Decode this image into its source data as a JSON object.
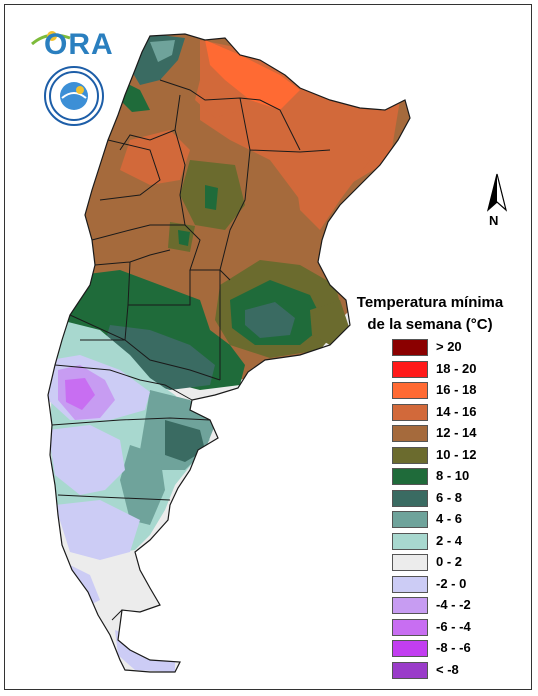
{
  "logo": {
    "text": "ORA"
  },
  "north_arrow": {
    "label": "N"
  },
  "legend": {
    "title_line1": "Temperatura mínima",
    "title_line2": "de la semana (°C)",
    "items": [
      {
        "label": "> 20",
        "color": "#8b0000"
      },
      {
        "label": "18 - 20",
        "color": "#ff1a1a"
      },
      {
        "label": "16 - 18",
        "color": "#ff6a33"
      },
      {
        "label": "14 - 16",
        "color": "#d2693a"
      },
      {
        "label": "12 - 14",
        "color": "#a56a3c"
      },
      {
        "label": "10 - 12",
        "color": "#6b6b2e"
      },
      {
        "label": "8 - 10",
        "color": "#1f6b3a"
      },
      {
        "label": "6 - 8",
        "color": "#3a6b62"
      },
      {
        "label": "4 - 6",
        "color": "#6fa39b"
      },
      {
        "label": "2 - 4",
        "color": "#a8d8cf"
      },
      {
        "label": "0 - 2",
        "color": "#ececec"
      },
      {
        "label": "-2 - 0",
        "color": "#ccccf5"
      },
      {
        "label": "-4 - -2",
        "color": "#c79cf2"
      },
      {
        "label": "-6 - -4",
        "color": "#c86ef2"
      },
      {
        "label": "-8 - -6",
        "color": "#c23ef0"
      },
      {
        "label": "< -8",
        "color": "#9a3cc9"
      }
    ]
  }
}
